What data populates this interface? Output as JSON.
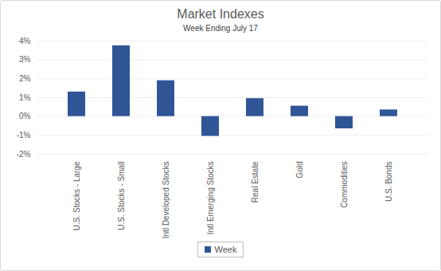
{
  "chart_data": {
    "type": "bar",
    "title": "Market Indexes",
    "subtitle": "Week Ending July 17",
    "categories": [
      "U.S. Stocks - Large",
      "U.S. Stocks - Small",
      "Intl Developed Stocks",
      "Intl Emerging Stocks",
      "Real Estate",
      "Gold",
      "Commodities",
      "U.S. Bonds"
    ],
    "series": [
      {
        "name": "Week",
        "color": "#2f5597",
        "values": [
          1.3,
          3.75,
          1.9,
          -1.05,
          0.95,
          0.55,
          -0.65,
          0.35
        ]
      }
    ],
    "ylim": [
      -2,
      4
    ],
    "yticks": [
      {
        "value": -2,
        "label": "-2%"
      },
      {
        "value": -1,
        "label": "-1%"
      },
      {
        "value": 0,
        "label": "0%"
      },
      {
        "value": 1,
        "label": "1%"
      },
      {
        "value": 2,
        "label": "2%"
      },
      {
        "value": 3,
        "label": "3%"
      },
      {
        "value": 4,
        "label": "4%"
      }
    ],
    "grid": true,
    "legend": "bottom"
  }
}
